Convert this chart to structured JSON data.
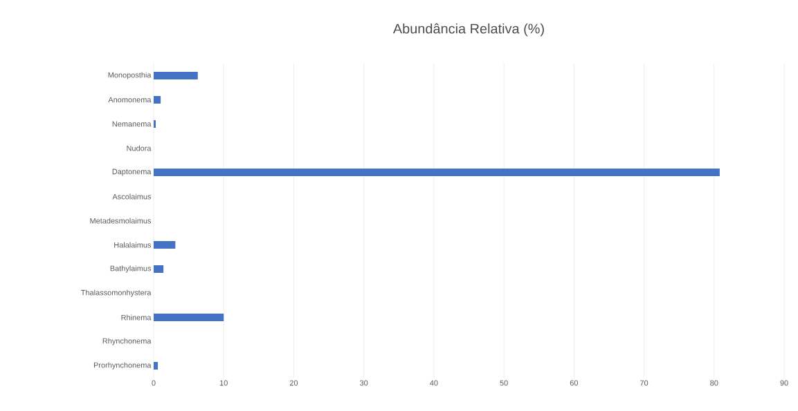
{
  "chart_data": {
    "type": "bar",
    "orientation": "horizontal",
    "title": "Abundância Relativa (%)",
    "categories": [
      "Monoposthia",
      "Anomonema",
      "Nemanema",
      "Nudora",
      "Daptonema",
      "Ascolaimus",
      "Metadesmolaimus",
      "Halalaimus",
      "Bathylaimus",
      "Thalassomonhystera",
      "Rhinema",
      "Rhynchonema",
      "Prorhynchonema"
    ],
    "values": [
      6.3,
      1.0,
      0.3,
      0,
      80.8,
      0,
      0,
      3.1,
      1.4,
      0,
      10.0,
      0,
      0.6
    ],
    "color": "#4472c4",
    "xlim": [
      0,
      90
    ],
    "xticks": [
      0,
      10,
      20,
      30,
      40,
      50,
      60,
      70,
      80,
      90
    ],
    "grid": "x"
  }
}
